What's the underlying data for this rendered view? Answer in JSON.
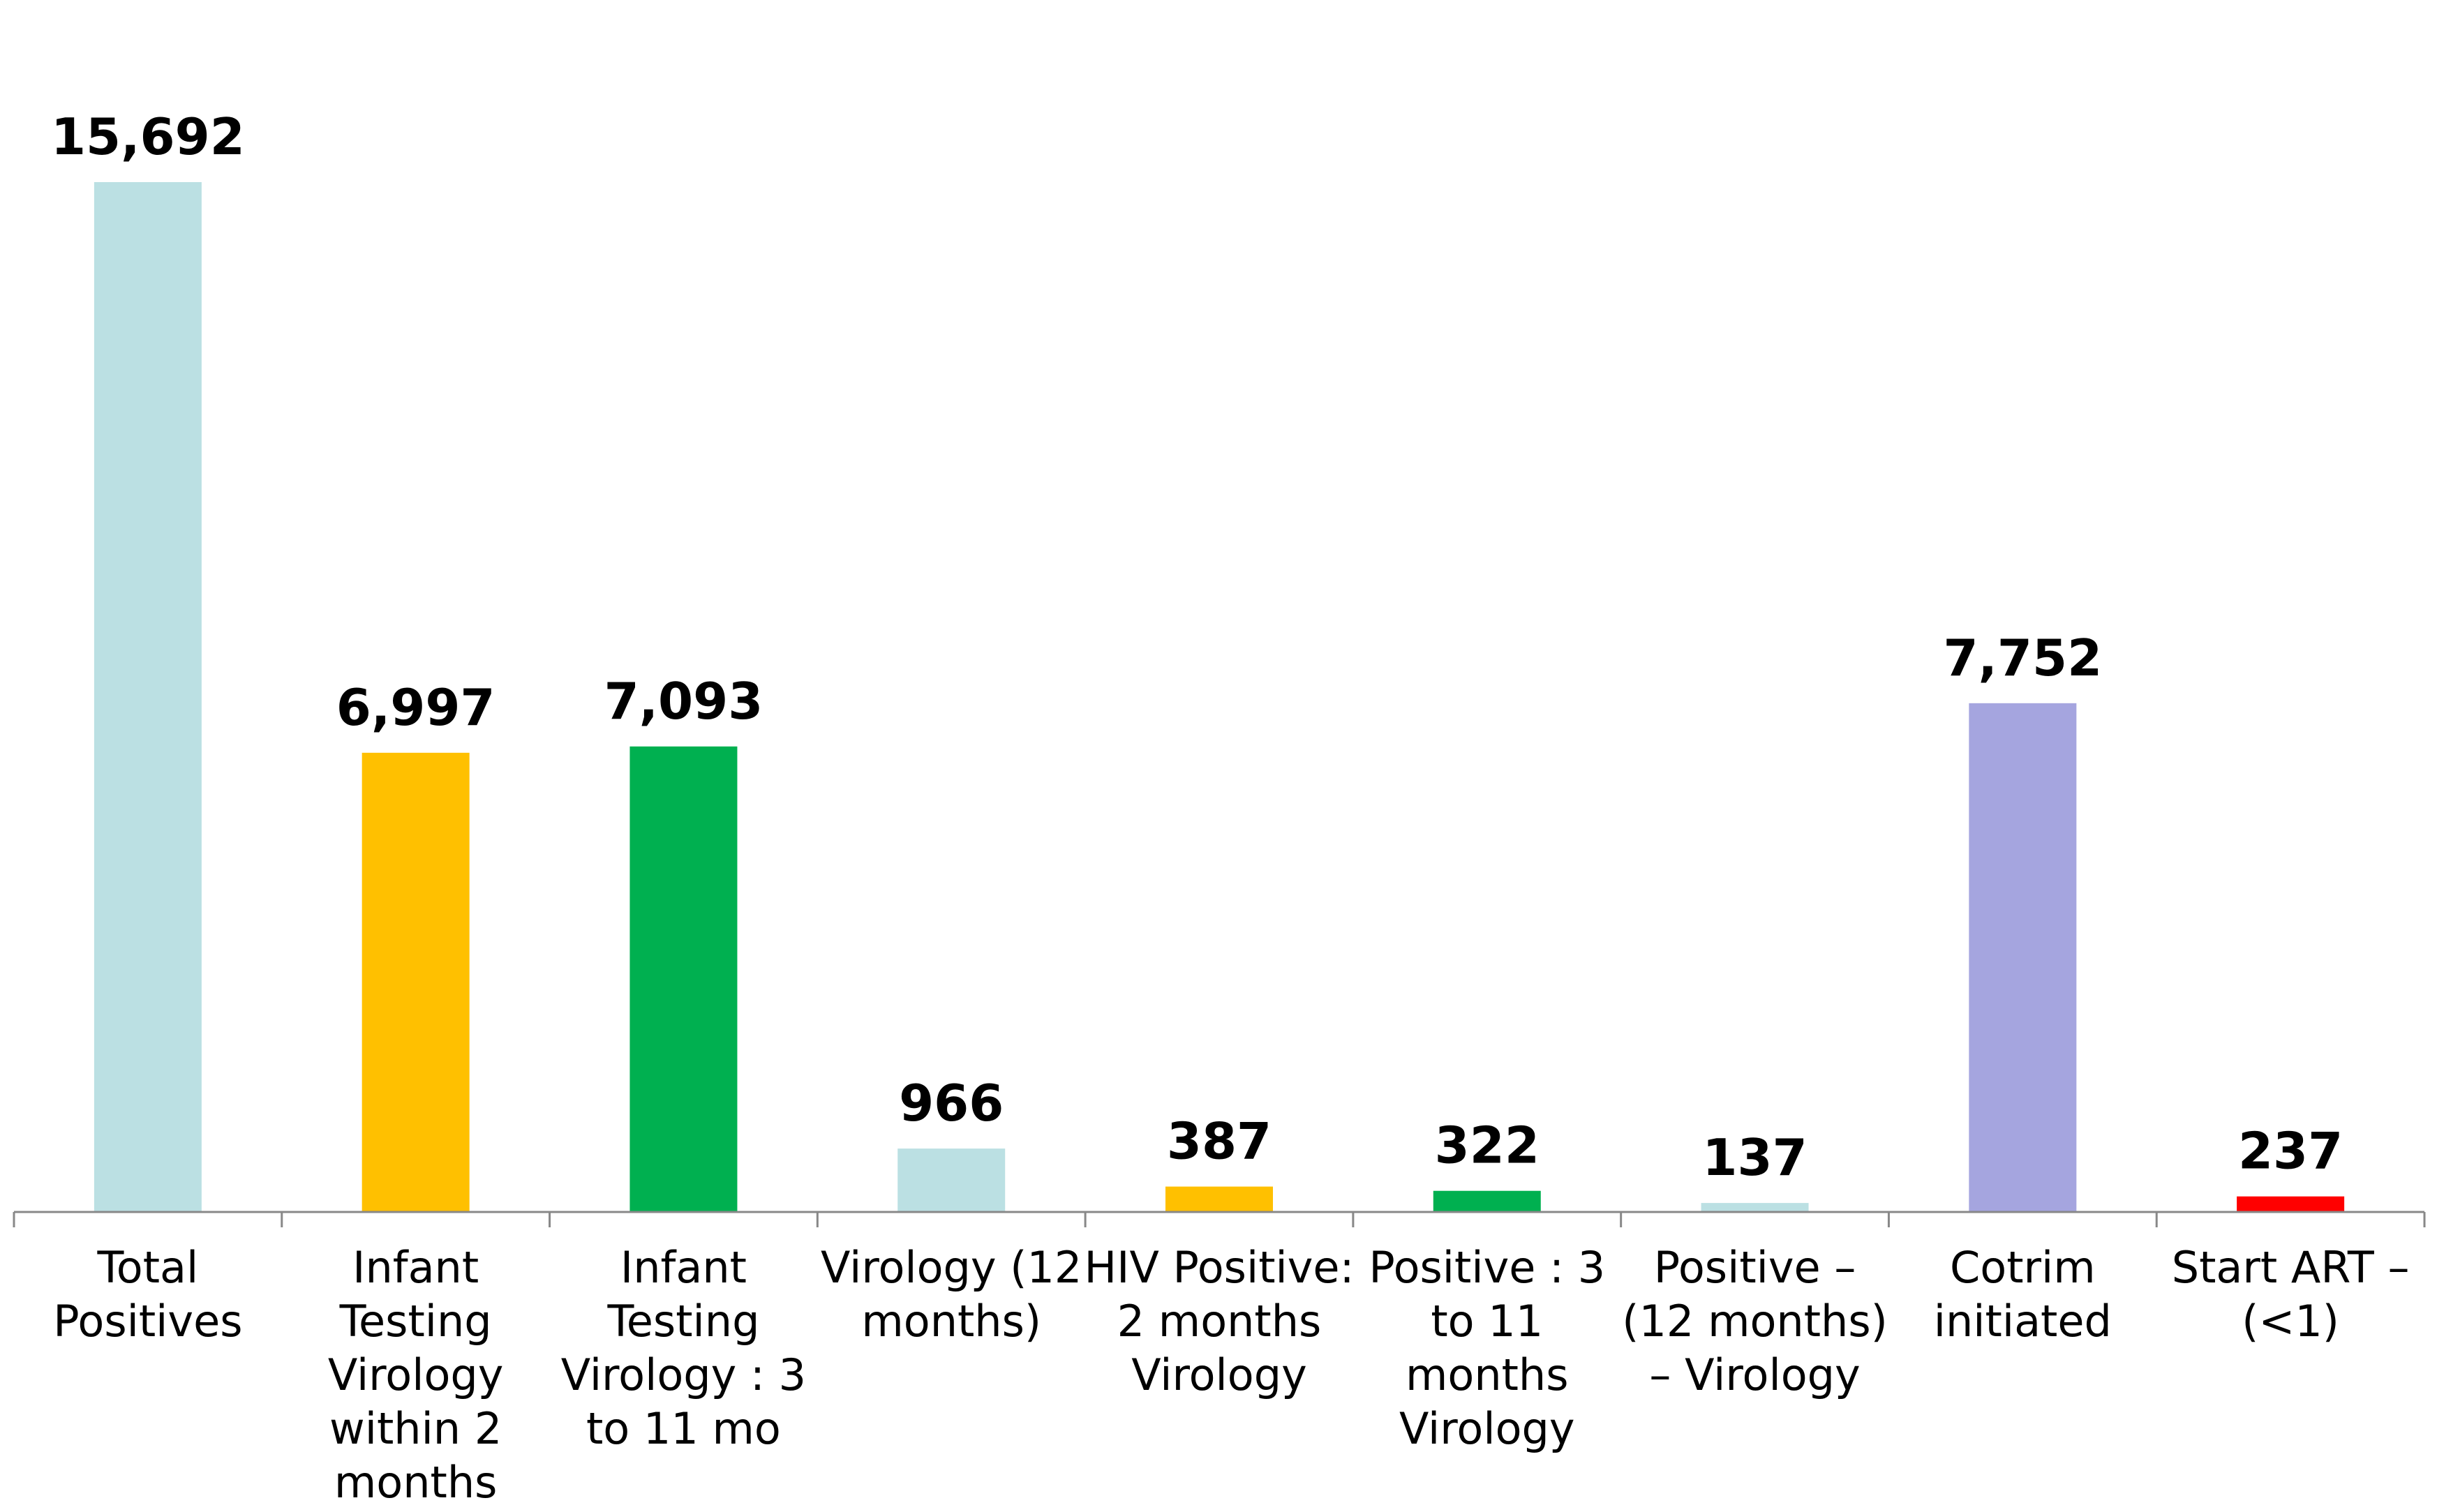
{
  "chart_data": {
    "type": "bar",
    "categories": [
      [
        "Total",
        "Positives"
      ],
      [
        "Infant",
        "Testing",
        "Virology",
        "within 2",
        "months"
      ],
      [
        "Infant",
        "Testing",
        "Virology : 3",
        "to 11 mo"
      ],
      [
        "Virology (12",
        "months)"
      ],
      [
        "HIV Positive:",
        "2 months",
        "Virology"
      ],
      [
        "Positive : 3",
        "to 11",
        "months",
        "Virology"
      ],
      [
        "Positive –",
        "(12 months)",
        "– Virology"
      ],
      [
        "Cotrim",
        "initiated"
      ],
      [
        "Start ART –",
        "(<1)"
      ]
    ],
    "values": [
      15692,
      6997,
      7093,
      966,
      387,
      322,
      137,
      7752,
      237
    ],
    "value_labels": [
      "15,692",
      "6,997",
      "7,093",
      "966",
      "387",
      "322",
      "137",
      "7,752",
      "237"
    ],
    "colors": [
      "#BBE0E3",
      "#FFC000",
      "#00B050",
      "#BBE0E3",
      "#FFC000",
      "#00B050",
      "#BBE0E3",
      "#A5A5DF",
      "#FF0000"
    ],
    "ylim": [
      0,
      15692
    ],
    "grid": false,
    "legend": "none",
    "title": "",
    "xlabel": "",
    "ylabel": ""
  }
}
